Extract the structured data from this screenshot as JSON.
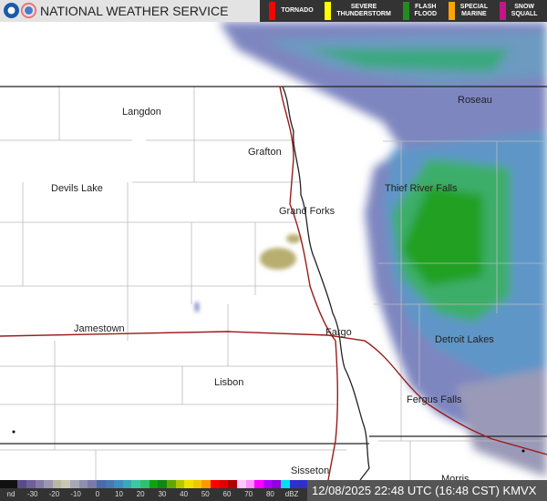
{
  "header": {
    "title": "NATIONAL WEATHER SERVICE",
    "logo_text": "NOAA NWS"
  },
  "warnings": [
    {
      "label": "TORNADO",
      "color": "#ff0000"
    },
    {
      "label": "SEVERE THUNDERSTORM",
      "color": "#ffff00"
    },
    {
      "label": "FLASH FLOOD",
      "color": "#228b22"
    },
    {
      "label": "SPECIAL MARINE",
      "color": "#ffa500"
    },
    {
      "label": "SNOW SQUALL",
      "color": "#c71585"
    }
  ],
  "cities": [
    {
      "name": "Langdon"
    },
    {
      "name": "Grafton"
    },
    {
      "name": "Devils Lake"
    },
    {
      "name": "Grand Forks"
    },
    {
      "name": "Roseau"
    },
    {
      "name": "Thief River Falls"
    },
    {
      "name": "Jamestown"
    },
    {
      "name": "Fargo"
    },
    {
      "name": "Detroit Lakes"
    },
    {
      "name": "Lisbon"
    },
    {
      "name": "Fergus Falls"
    },
    {
      "name": "Sisseton"
    },
    {
      "name": "Morris"
    }
  ],
  "legend": {
    "ticks": [
      "nd",
      "-30",
      "-20",
      "-10",
      "0",
      "10",
      "20",
      "30",
      "40",
      "50",
      "60",
      "70",
      "80",
      "dBZ"
    ],
    "colors": [
      "#111",
      "#111",
      "#5b4a8a",
      "#6f5f9a",
      "#847aa8",
      "#9a96b3",
      "#b8b8a0",
      "#c8c8b0",
      "#a8a8b8",
      "#8f8fae",
      "#7a7aa8",
      "#4a6aa8",
      "#4a78b0",
      "#3e8ec0",
      "#3aa8b8",
      "#3cc8a0",
      "#30c070",
      "#10a010",
      "#108810",
      "#60a800",
      "#b0c800",
      "#f0e000",
      "#f0c800",
      "#ff9900",
      "#ff0000",
      "#e00000",
      "#b00000",
      "#ffc8ff",
      "#ff90ff",
      "#ff00ff",
      "#b000ff",
      "#9000e0",
      "#00e0f0",
      "#3030d0",
      "#3030c8"
    ]
  },
  "timestamp": "12/08/2025 22:48 UTC (16:48 CST) KMVX"
}
